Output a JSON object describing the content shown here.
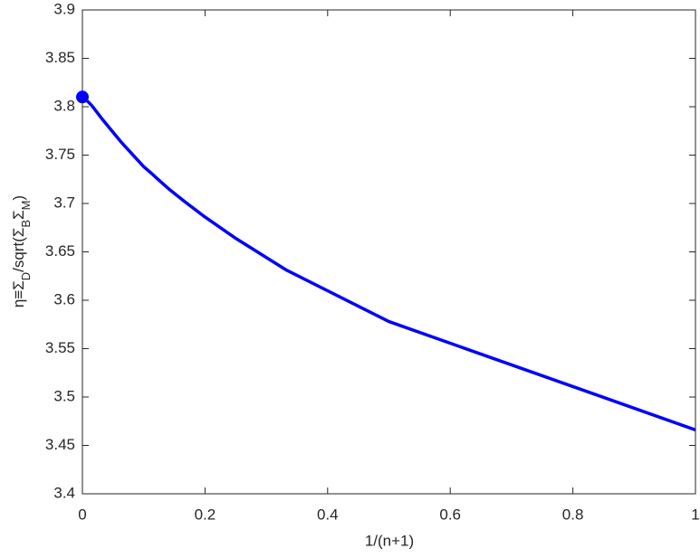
{
  "chart_data": {
    "type": "line",
    "xlabel": "1/(n+1)",
    "ylabel": [
      {
        "text": "η≡Σ"
      },
      {
        "text": "D",
        "sub": true
      },
      {
        "text": "/sqrt(Σ"
      },
      {
        "text": "B",
        "sub": true
      },
      {
        "text": "Σ"
      },
      {
        "text": "M",
        "sub": true
      },
      {
        "text": ")"
      }
    ],
    "xlim": [
      0,
      1
    ],
    "xticks": [
      0,
      0.2,
      0.4,
      0.6,
      0.8,
      1
    ],
    "ylim": [
      3.4,
      3.9
    ],
    "yticks": [
      3.4,
      3.45,
      3.5,
      3.55,
      3.6,
      3.65,
      3.7,
      3.75,
      3.8,
      3.85,
      3.9
    ],
    "grid": false,
    "series": [
      {
        "color": "#0000ff",
        "style": "line",
        "x": [
          1,
          0.5,
          0.3333,
          0.25,
          0.2,
          0.1667,
          0.1429,
          0.125,
          0.1111,
          0.1,
          0.0625,
          0.0313,
          0.0156,
          0.0079
        ],
        "values": [
          3.466,
          3.578,
          3.631,
          3.664,
          3.686,
          3.702,
          3.714,
          3.724,
          3.732,
          3.738,
          3.764,
          3.788,
          3.801,
          3.806
        ]
      },
      {
        "color": "#0000ff",
        "style": "marker",
        "x": [
          0
        ],
        "values": [
          3.81
        ]
      }
    ]
  }
}
